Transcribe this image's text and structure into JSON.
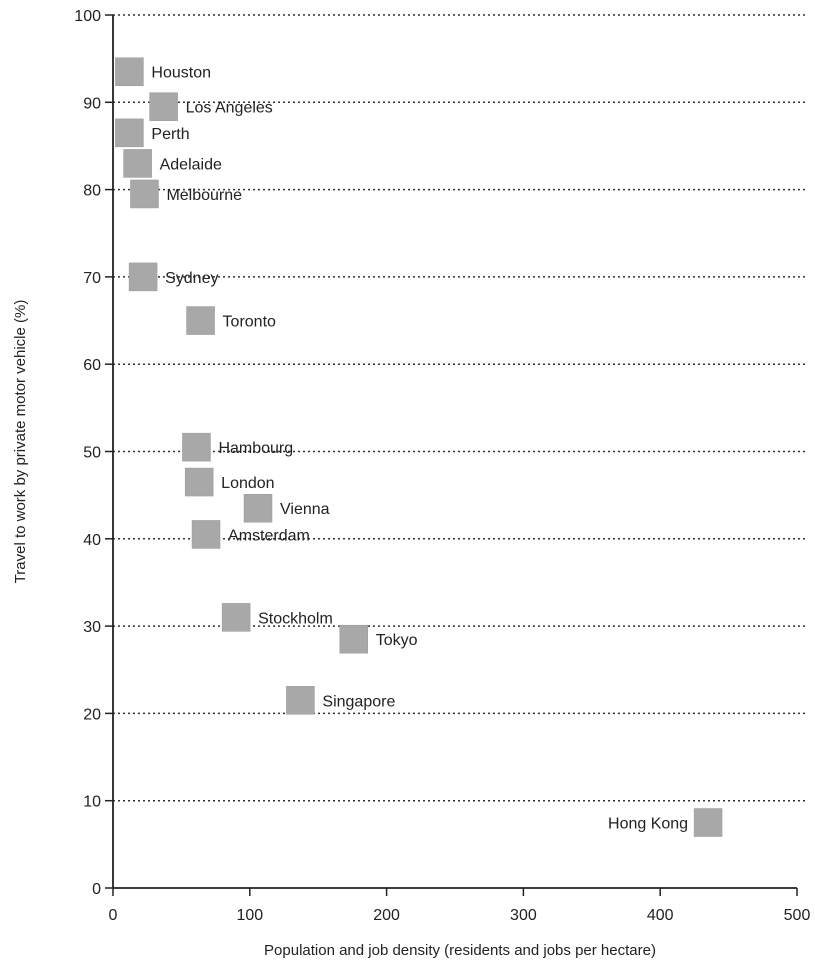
{
  "chart_data": {
    "type": "scatter",
    "xlabel": "Population and job density (residents and jobs per hectare)",
    "ylabel": "Travel to work by private motor vehicle (%)",
    "xlim": [
      0,
      500
    ],
    "ylim": [
      0,
      100
    ],
    "x_ticks": [
      "0",
      "100",
      "200",
      "300",
      "400",
      "500"
    ],
    "y_ticks": [
      "0",
      "10",
      "20",
      "30",
      "40",
      "50",
      "60",
      "70",
      "80",
      "90",
      "100"
    ],
    "grid": "horizontal dotted",
    "marker_color": "#a8a8a8",
    "points": [
      {
        "label": "Houston",
        "x": 12,
        "y": 93.5
      },
      {
        "label": "Los Angeles",
        "x": 37,
        "y": 89.5
      },
      {
        "label": "Perth",
        "x": 12,
        "y": 86.5
      },
      {
        "label": "Adelaide",
        "x": 18,
        "y": 83
      },
      {
        "label": "Melbourne",
        "x": 23,
        "y": 79.5
      },
      {
        "label": "Sydney",
        "x": 22,
        "y": 70
      },
      {
        "label": "Toronto",
        "x": 64,
        "y": 65
      },
      {
        "label": "Hambourg",
        "x": 61,
        "y": 50.5
      },
      {
        "label": "London",
        "x": 63,
        "y": 46.5
      },
      {
        "label": "Vienna",
        "x": 106,
        "y": 43.5
      },
      {
        "label": "Amsterdam",
        "x": 68,
        "y": 40.5
      },
      {
        "label": "Stockholm",
        "x": 90,
        "y": 31
      },
      {
        "label": "Tokyo",
        "x": 176,
        "y": 28.5
      },
      {
        "label": "Singapore",
        "x": 137,
        "y": 21.5
      },
      {
        "label": "Hong Kong",
        "x": 435,
        "y": 7.5
      }
    ]
  }
}
